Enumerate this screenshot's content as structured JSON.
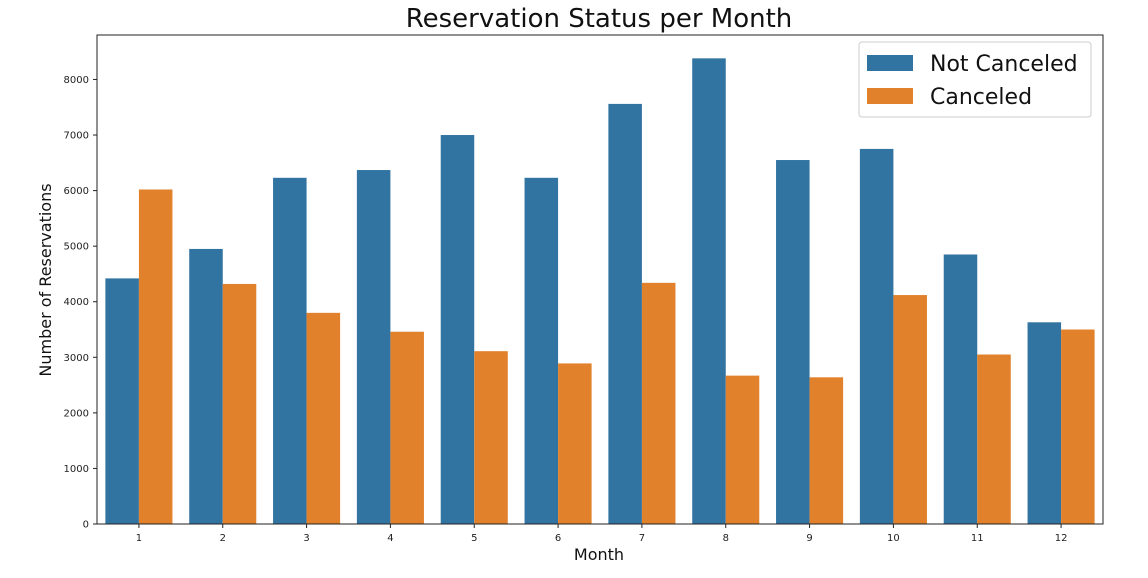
{
  "chart_data": {
    "type": "bar",
    "title": "Reservation Status per Month",
    "xlabel": "Month",
    "ylabel": "Number of Reservations",
    "categories": [
      "1",
      "2",
      "3",
      "4",
      "5",
      "6",
      "7",
      "8",
      "9",
      "10",
      "11",
      "12"
    ],
    "series": [
      {
        "name": "Not Canceled",
        "color": "#3274a1",
        "values": [
          4420,
          4950,
          6230,
          6370,
          7000,
          6230,
          7560,
          8380,
          6550,
          6750,
          4850,
          3630
        ]
      },
      {
        "name": "Canceled",
        "color": "#e1812c",
        "values": [
          6020,
          4320,
          3800,
          3460,
          3110,
          2890,
          4340,
          2670,
          2640,
          4120,
          3050,
          3500
        ]
      }
    ],
    "ylim": [
      0,
      8800
    ],
    "yticks": [
      0,
      1000,
      2000,
      3000,
      4000,
      5000,
      6000,
      7000,
      8000
    ],
    "grid": false,
    "legend_position": "top-right"
  }
}
